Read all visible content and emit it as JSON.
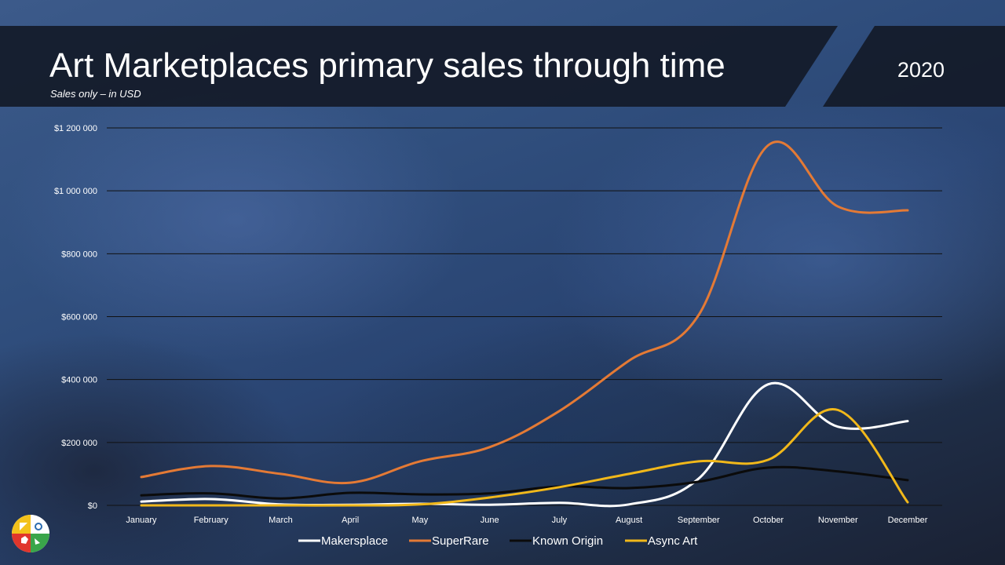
{
  "slide": {
    "title": "Art Marketplaces primary sales through time",
    "subtitle": "Sales only – in USD",
    "year": "2020"
  },
  "colors": {
    "Makersplace": "#ffffff",
    "SuperRare": "#e47a35",
    "Known Origin": "#0b0b0b",
    "Async Art": "#f1b81a"
  },
  "chart_data": {
    "type": "line",
    "title": "Art Marketplaces primary sales through time",
    "xlabel": "",
    "ylabel": "",
    "ylim": [
      0,
      1200000
    ],
    "yticks": [
      0,
      200000,
      400000,
      600000,
      800000,
      1000000,
      1200000
    ],
    "ytick_labels": [
      "$0",
      "$200 000",
      "$400 000",
      "$600 000",
      "$800 000",
      "$1 000 000",
      "$1 200 000"
    ],
    "categories": [
      "January",
      "February",
      "March",
      "April",
      "May",
      "June",
      "July",
      "August",
      "September",
      "October",
      "November",
      "December"
    ],
    "grid": true,
    "legend_position": "bottom",
    "series": [
      {
        "name": "Makersplace",
        "values": [
          12000,
          20000,
          3000,
          2000,
          5000,
          2000,
          8000,
          3000,
          85000,
          385000,
          250000,
          268000
        ]
      },
      {
        "name": "SuperRare",
        "values": [
          90000,
          125000,
          100000,
          72000,
          140000,
          185000,
          300000,
          460000,
          605000,
          1145000,
          950000,
          938000
        ]
      },
      {
        "name": "Known Origin",
        "values": [
          32000,
          38000,
          22000,
          40000,
          35000,
          38000,
          60000,
          55000,
          75000,
          120000,
          108000,
          80000
        ]
      },
      {
        "name": "Async Art",
        "values": [
          0,
          0,
          0,
          0,
          3000,
          25000,
          58000,
          100000,
          140000,
          145000,
          303000,
          10000
        ]
      }
    ]
  }
}
